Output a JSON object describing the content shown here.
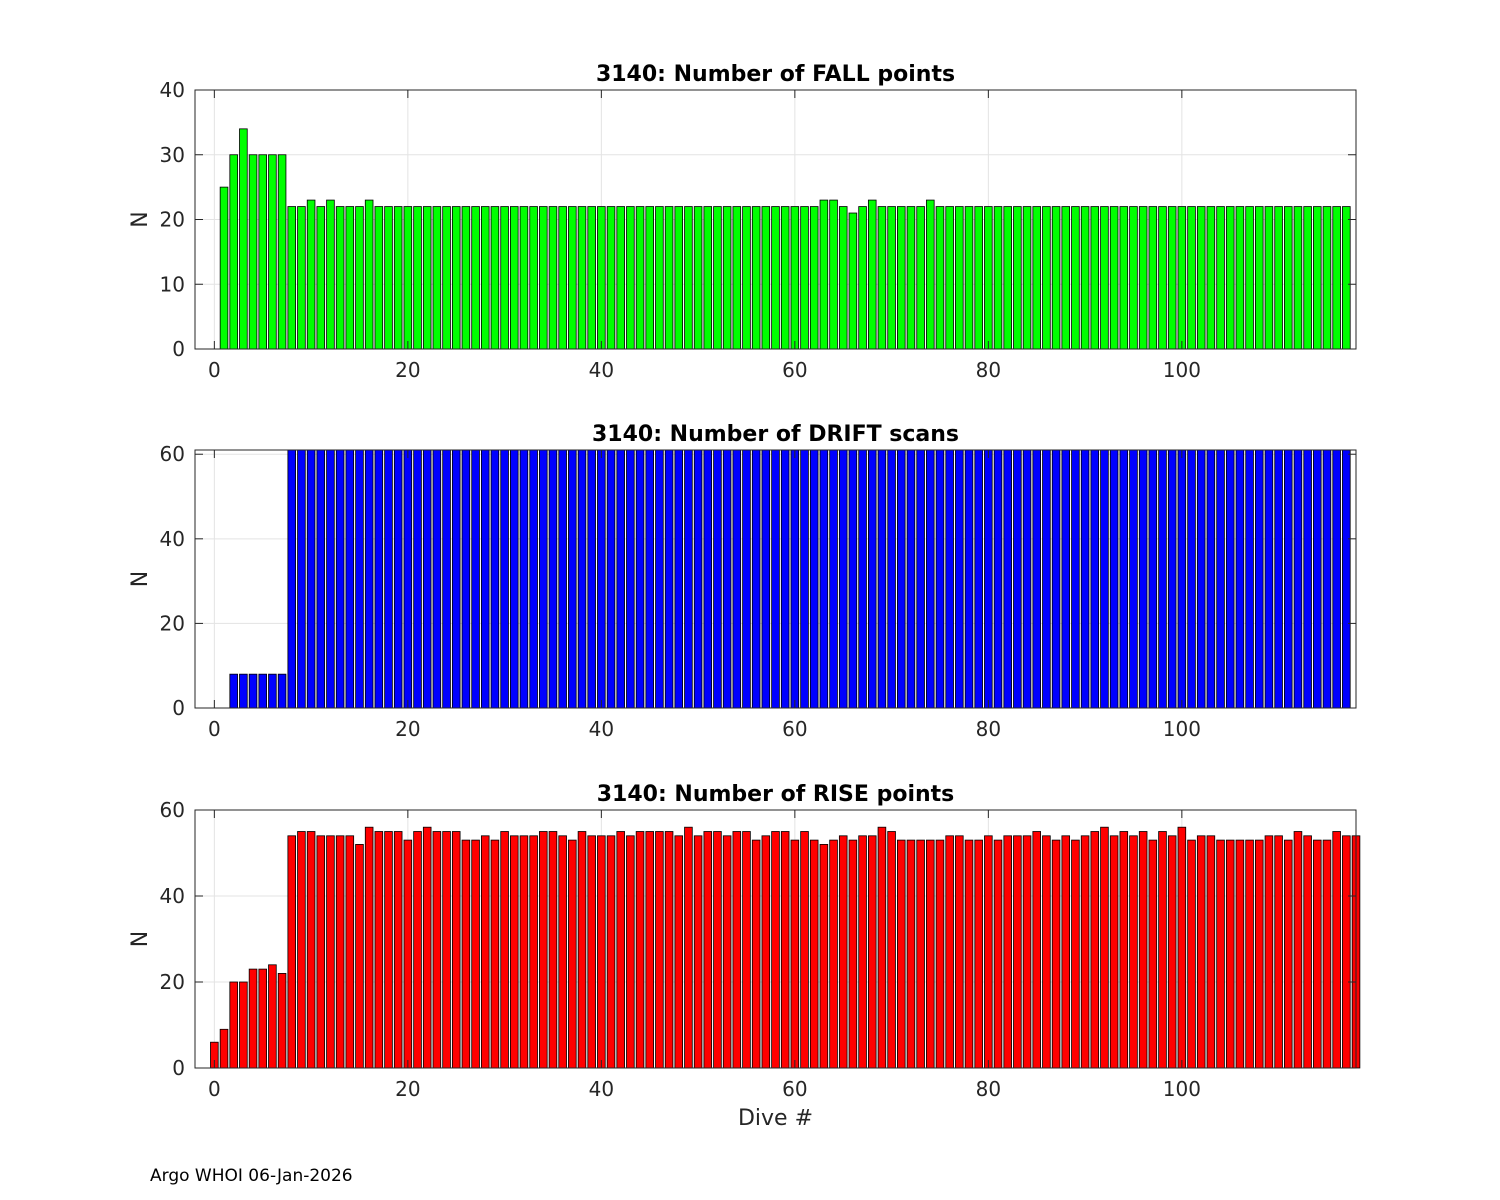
{
  "footer_text": "Argo WHOI 06-Jan-2026",
  "chart_data": [
    {
      "type": "bar",
      "title": "3140: Number of FALL points",
      "xlabel": "",
      "ylabel": "N",
      "xlim": [
        -2,
        118
      ],
      "ylim": [
        0,
        40
      ],
      "xticks": [
        0,
        20,
        40,
        60,
        80,
        100
      ],
      "yticks": [
        0,
        10,
        20,
        30,
        40
      ],
      "grid": true,
      "color": "#00ff00",
      "x_start": 0,
      "values": [
        0,
        25,
        30,
        34,
        30,
        30,
        30,
        30,
        22,
        22,
        23,
        22,
        23,
        22,
        22,
        22,
        23,
        22,
        22,
        22,
        22,
        22,
        22,
        22,
        22,
        22,
        22,
        22,
        22,
        22,
        22,
        22,
        22,
        22,
        22,
        22,
        22,
        22,
        22,
        22,
        22,
        22,
        22,
        22,
        22,
        22,
        22,
        22,
        22,
        22,
        22,
        22,
        22,
        22,
        22,
        22,
        22,
        22,
        22,
        22,
        22,
        22,
        22,
        23,
        23,
        22,
        21,
        22,
        23,
        22,
        22,
        22,
        22,
        22,
        23,
        22,
        22,
        22,
        22,
        22,
        22,
        22,
        22,
        22,
        22,
        22,
        22,
        22,
        22,
        22,
        22,
        22,
        22,
        22,
        22,
        22,
        22,
        22,
        22,
        22,
        22,
        22,
        22,
        22,
        22,
        22,
        22,
        22,
        22,
        22,
        22,
        22,
        22,
        22,
        22,
        22,
        22,
        22
      ]
    },
    {
      "type": "bar",
      "title": "3140: Number of DRIFT scans",
      "xlabel": "",
      "ylabel": "N",
      "xlim": [
        -2,
        118
      ],
      "ylim": [
        0,
        61
      ],
      "xticks": [
        0,
        20,
        40,
        60,
        80,
        100
      ],
      "yticks": [
        0,
        20,
        40,
        60
      ],
      "grid": true,
      "color": "#0000ff",
      "x_start": 0,
      "values": [
        0,
        0,
        8,
        8,
        8,
        8,
        8,
        8,
        61,
        61,
        61,
        61,
        61,
        61,
        61,
        61,
        61,
        61,
        61,
        61,
        61,
        61,
        61,
        61,
        61,
        61,
        61,
        61,
        61,
        61,
        61,
        61,
        61,
        61,
        61,
        61,
        61,
        61,
        61,
        61,
        61,
        61,
        61,
        61,
        61,
        61,
        61,
        61,
        61,
        61,
        61,
        61,
        61,
        61,
        61,
        61,
        61,
        61,
        61,
        61,
        61,
        61,
        61,
        61,
        61,
        61,
        61,
        61,
        61,
        61,
        61,
        61,
        61,
        61,
        61,
        61,
        61,
        61,
        61,
        61,
        61,
        61,
        61,
        61,
        61,
        61,
        61,
        61,
        61,
        61,
        61,
        61,
        61,
        61,
        61,
        61,
        61,
        61,
        61,
        61,
        61,
        61,
        61,
        61,
        61,
        61,
        61,
        61,
        61,
        61,
        61,
        61,
        61,
        61,
        61,
        61,
        61,
        61
      ]
    },
    {
      "type": "bar",
      "title": "3140: Number of RISE points",
      "xlabel": "Dive #",
      "ylabel": "N",
      "xlim": [
        -2,
        118
      ],
      "ylim": [
        0,
        60
      ],
      "xticks": [
        0,
        20,
        40,
        60,
        80,
        100
      ],
      "yticks": [
        0,
        20,
        40,
        60
      ],
      "grid": true,
      "color": "#ff0000",
      "x_start": 0,
      "values": [
        6,
        9,
        20,
        20,
        23,
        23,
        24,
        22,
        54,
        55,
        55,
        54,
        54,
        54,
        54,
        52,
        56,
        55,
        55,
        55,
        53,
        55,
        56,
        55,
        55,
        55,
        53,
        53,
        54,
        53,
        55,
        54,
        54,
        54,
        55,
        55,
        54,
        53,
        55,
        54,
        54,
        54,
        55,
        54,
        55,
        55,
        55,
        55,
        54,
        56,
        54,
        55,
        55,
        54,
        55,
        55,
        53,
        54,
        55,
        55,
        53,
        55,
        53,
        52,
        53,
        54,
        53,
        54,
        54,
        56,
        55,
        53,
        53,
        53,
        53,
        53,
        54,
        54,
        53,
        53,
        54,
        53,
        54,
        54,
        54,
        55,
        54,
        53,
        54,
        53,
        54,
        55,
        56,
        54,
        55,
        54,
        55,
        53,
        55,
        54,
        56,
        53,
        54,
        54,
        53,
        53,
        53,
        53,
        53,
        54,
        54,
        53,
        55,
        54,
        53,
        53,
        55,
        54,
        54
      ]
    }
  ]
}
